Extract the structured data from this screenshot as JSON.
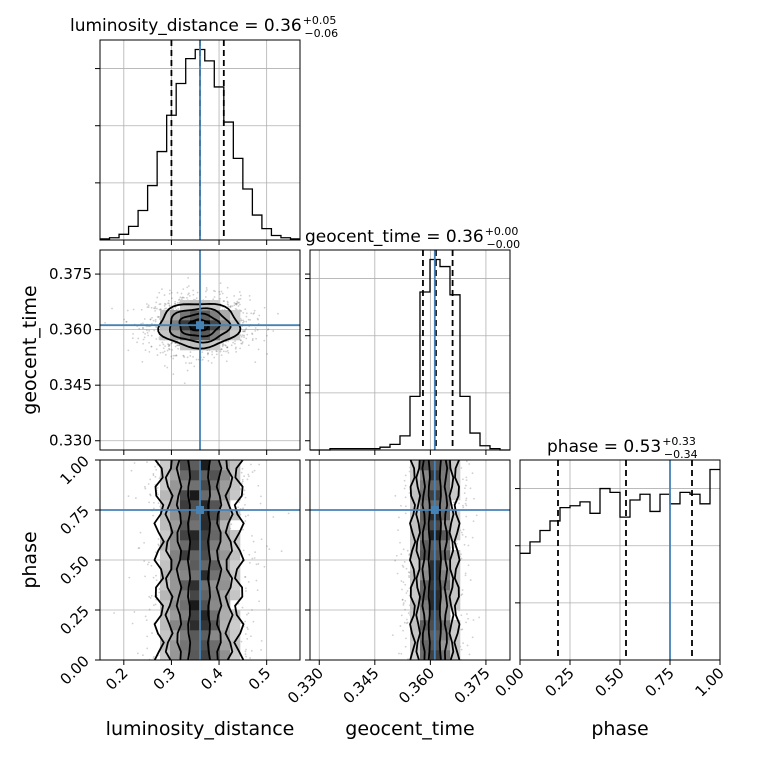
{
  "chart_data": {
    "type": "corner",
    "parameters": [
      "luminosity_distance",
      "geocent_time",
      "phase"
    ],
    "truths": {
      "luminosity_distance": 0.36,
      "geocent_time": 0.3612,
      "phase": 0.75
    },
    "truth_color": "#4682b4",
    "axes_limits": {
      "luminosity_distance": [
        0.15,
        0.57
      ],
      "geocent_time": [
        0.3275,
        0.3815
      ],
      "phase": [
        0.0,
        1.0
      ]
    },
    "ticks": {
      "luminosity_distance": [
        0.2,
        0.3,
        0.4,
        0.5
      ],
      "geocent_time": [
        0.33,
        0.345,
        0.36,
        0.375
      ],
      "phase": [
        0.0,
        0.25,
        0.5,
        0.75,
        1.0
      ]
    },
    "tick_labels": {
      "luminosity_distance": [
        "0.2",
        "0.3",
        "0.4",
        "0.5"
      ],
      "geocent_time": [
        "0.330",
        "0.345",
        "0.360",
        "0.375"
      ],
      "phase": [
        "0.00",
        "0.25",
        "0.50",
        "0.75",
        "1.00"
      ]
    },
    "titles": [
      {
        "name": "luminosity_distance",
        "text": "luminosity_distance = 0.36",
        "plus": "+0.05",
        "minus": "−0.06"
      },
      {
        "name": "geocent_time",
        "text": "geocent_time = 0.36",
        "plus": "+0.00",
        "minus": "−0.00"
      },
      {
        "name": "phase",
        "text": "phase = 0.53",
        "plus": "+0.33",
        "minus": "−0.34"
      }
    ],
    "axis_labels": {
      "x": [
        "luminosity_distance",
        "geocent_time",
        "phase"
      ],
      "y": [
        "geocent_time",
        "phase"
      ]
    },
    "quantiles": {
      "luminosity_distance": [
        0.3,
        0.36,
        0.41
      ],
      "geocent_time": [
        0.358,
        0.3615,
        0.366
      ],
      "phase": [
        0.19,
        0.53,
        0.86
      ]
    },
    "histograms": {
      "luminosity_distance": {
        "edges": [
          0.15,
          0.17,
          0.19,
          0.21,
          0.23,
          0.25,
          0.27,
          0.29,
          0.31,
          0.33,
          0.35,
          0.37,
          0.39,
          0.41,
          0.43,
          0.45,
          0.47,
          0.49,
          0.51,
          0.53,
          0.55,
          0.57
        ],
        "counts": [
          1,
          2,
          5,
          12,
          26,
          48,
          78,
          110,
          138,
          160,
          168,
          158,
          135,
          104,
          72,
          45,
          22,
          10,
          4,
          2,
          1
        ]
      },
      "geocent_time": {
        "edges": [
          0.3275,
          0.3302,
          0.3329,
          0.3356,
          0.3383,
          0.341,
          0.3437,
          0.3464,
          0.3491,
          0.3518,
          0.3545,
          0.3572,
          0.3599,
          0.3626,
          0.3653,
          0.368,
          0.3707,
          0.3734,
          0.3761,
          0.3788,
          0.3815
        ],
        "counts": [
          0,
          0,
          1,
          1,
          1,
          1,
          1,
          2,
          4,
          10,
          38,
          112,
          135,
          130,
          110,
          38,
          12,
          3,
          1,
          0
        ]
      },
      "phase": {
        "edges": [
          0.0,
          0.05,
          0.1,
          0.15,
          0.2,
          0.25,
          0.3,
          0.35,
          0.4,
          0.45,
          0.5,
          0.55,
          0.6,
          0.65,
          0.7,
          0.75,
          0.8,
          0.85,
          0.9,
          0.95,
          1.0
        ],
        "counts": [
          56,
          62,
          68,
          73,
          80,
          81,
          83,
          77,
          90,
          88,
          75,
          84,
          87,
          78,
          87,
          82,
          88,
          87,
          82,
          100
        ]
      }
    }
  }
}
